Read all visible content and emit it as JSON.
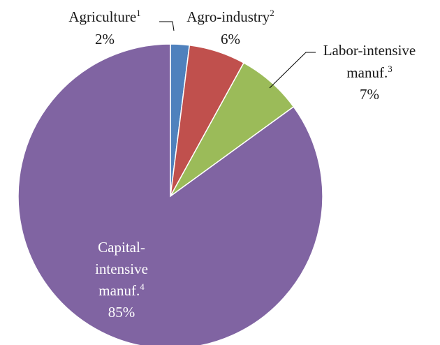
{
  "chart_data": {
    "type": "pie",
    "title": "",
    "legend": "none",
    "slices": [
      {
        "name": "Agriculture",
        "sup": "1",
        "value": 2,
        "value_label": "2%",
        "color": "#4f81bd",
        "label_color": "dark"
      },
      {
        "name": "Agro-industry",
        "sup": "2",
        "value": 6,
        "value_label": "6%",
        "color": "#c0504d",
        "label_color": "dark"
      },
      {
        "name": "Labor-intensive manuf.",
        "sup": "3",
        "value": 7,
        "value_label": "7%",
        "color": "#9bbb59",
        "label_color": "dark"
      },
      {
        "name": "Capital-intensive manuf.",
        "sup": "4",
        "value": 85,
        "value_label": "85%",
        "color": "#8064a2",
        "label_color": "light"
      }
    ]
  }
}
